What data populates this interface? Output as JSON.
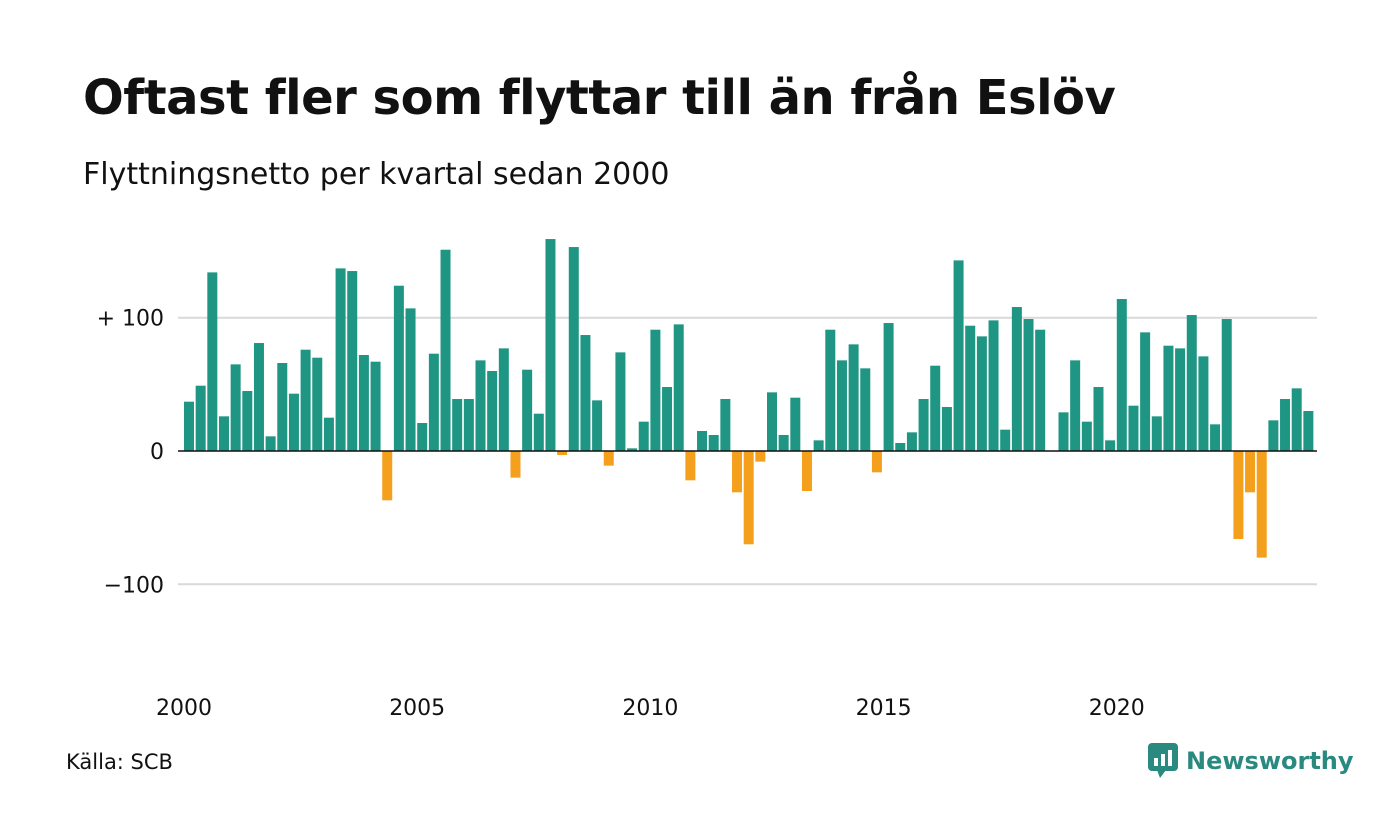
{
  "header": {
    "title": "Oftast fler som flyttar till än från Eslöv",
    "subtitle": "Flyttningsnetto per kvartal sedan 2000"
  },
  "footer": {
    "source": "Källa: SCB",
    "brand": "Newsworthy",
    "brand_icon": "newsworthy-logo-icon"
  },
  "colors": {
    "positive": "#1f9583",
    "negative": "#f4a01c",
    "gridline": "#d9d9d9",
    "zero_line": "#111111",
    "brand": "#2a8a80"
  },
  "chart_data": {
    "type": "bar",
    "title": "Oftast fler som flyttar till än från Eslöv",
    "subtitle": "Flyttningsnetto per kvartal sedan 2000",
    "xlabel": "",
    "ylabel": "",
    "ylim": [
      -175,
      175
    ],
    "yticks": [
      {
        "value": 100,
        "label": "+ 100"
      },
      {
        "value": 0,
        "label": "0"
      },
      {
        "value": -100,
        "label": "−100"
      }
    ],
    "xticks": [
      {
        "year": 2000,
        "label": "2000"
      },
      {
        "year": 2005,
        "label": "2005"
      },
      {
        "year": 2010,
        "label": "2010"
      },
      {
        "year": 2015,
        "label": "2015"
      },
      {
        "year": 2020,
        "label": "2020"
      }
    ],
    "start_year": 2000,
    "start_quarter": 1,
    "grid": true,
    "legend": "none",
    "values": [
      37,
      49,
      134,
      26,
      65,
      45,
      81,
      11,
      66,
      43,
      76,
      70,
      25,
      137,
      135,
      72,
      67,
      -37,
      124,
      107,
      21,
      73,
      151,
      39,
      39,
      68,
      60,
      77,
      -20,
      61,
      28,
      159,
      -3,
      153,
      87,
      38,
      -11,
      74,
      2,
      22,
      91,
      48,
      95,
      -22,
      15,
      12,
      39,
      -31,
      -70,
      -8,
      44,
      12,
      40,
      -30,
      8,
      91,
      68,
      80,
      62,
      -16,
      96,
      6,
      14,
      39,
      64,
      33,
      143,
      94,
      86,
      98,
      16,
      108,
      99,
      91,
      0,
      29,
      68,
      22,
      48,
      8,
      114,
      34,
      89,
      26,
      79,
      77,
      102,
      71,
      20,
      99,
      -66,
      -31,
      -80,
      23,
      39,
      47,
      30
    ]
  }
}
